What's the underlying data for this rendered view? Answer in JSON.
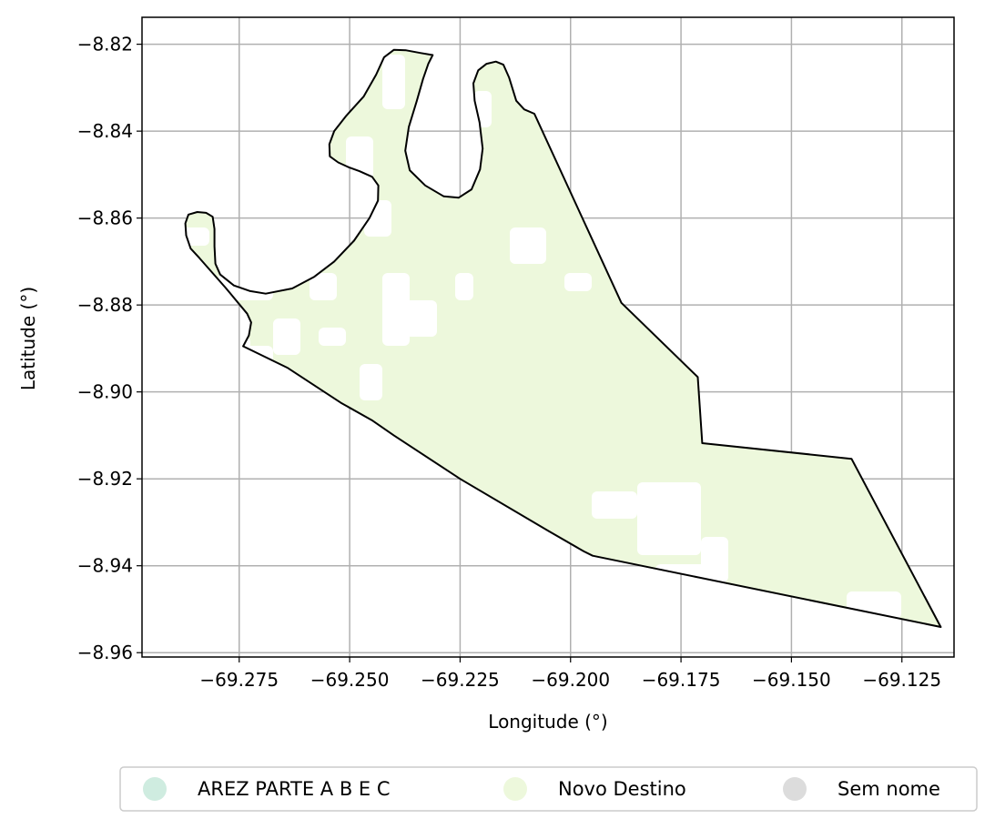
{
  "chart_data": {
    "type": "map",
    "xlabel": "Longitude (°)",
    "ylabel": "Latitude (°)",
    "xlim": [
      -69.297,
      -69.1132
    ],
    "ylim": [
      -8.961,
      -8.8138
    ],
    "grid": true,
    "xticks": [
      -69.275,
      -69.25,
      -69.225,
      -69.2,
      -69.175,
      -69.15,
      -69.125
    ],
    "xtick_labels": [
      "−69.275",
      "−69.250",
      "−69.225",
      "−69.200",
      "−69.175",
      "−69.150",
      "−69.125"
    ],
    "yticks": [
      -8.82,
      -8.84,
      -8.86,
      -8.88,
      -8.9,
      -8.92,
      -8.94,
      -8.96
    ],
    "ytick_labels": [
      "−8.82",
      "−8.84",
      "−8.86",
      "−8.88",
      "−8.90",
      "−8.92",
      "−8.94",
      "−8.96"
    ],
    "boundary": [
      [
        -69.2741,
        -8.8895
      ],
      [
        -69.2728,
        -8.887
      ],
      [
        -69.2723,
        -8.884
      ],
      [
        -69.2732,
        -8.882
      ],
      [
        -69.2781,
        -8.876
      ],
      [
        -69.284,
        -8.8692
      ],
      [
        -69.286,
        -8.867
      ],
      [
        -69.287,
        -8.864
      ],
      [
        -69.2872,
        -8.8612
      ],
      [
        -69.2865,
        -8.8592
      ],
      [
        -69.2845,
        -8.8586
      ],
      [
        -69.2825,
        -8.8588
      ],
      [
        -69.281,
        -8.8597
      ],
      [
        -69.2806,
        -8.8625
      ],
      [
        -69.2806,
        -8.8665
      ],
      [
        -69.2804,
        -8.8705
      ],
      [
        -69.2793,
        -8.873
      ],
      [
        -69.2762,
        -8.8755
      ],
      [
        -69.2725,
        -8.8768
      ],
      [
        -69.269,
        -8.8774
      ],
      [
        -69.263,
        -8.8762
      ],
      [
        -69.258,
        -8.8735
      ],
      [
        -69.2535,
        -8.87
      ],
      [
        -69.249,
        -8.8652
      ],
      [
        -69.2455,
        -8.86
      ],
      [
        -69.2436,
        -8.856
      ],
      [
        -69.2435,
        -8.8525
      ],
      [
        -69.2449,
        -8.8505
      ],
      [
        -69.2478,
        -8.8492
      ],
      [
        -69.2502,
        -8.8483
      ],
      [
        -69.2526,
        -8.8472
      ],
      [
        -69.2545,
        -8.8458
      ],
      [
        -69.2546,
        -8.843
      ],
      [
        -69.2535,
        -8.84
      ],
      [
        -69.2508,
        -8.8365
      ],
      [
        -69.2468,
        -8.832
      ],
      [
        -69.244,
        -8.827
      ],
      [
        -69.2422,
        -8.823
      ],
      [
        -69.24,
        -8.8213
      ],
      [
        -69.2372,
        -8.8214
      ],
      [
        -69.234,
        -8.822
      ],
      [
        -69.2312,
        -8.8225
      ],
      [
        -69.2322,
        -8.8245
      ],
      [
        -69.2334,
        -8.828
      ],
      [
        -69.2348,
        -8.833
      ],
      [
        -69.2366,
        -8.839
      ],
      [
        -69.2374,
        -8.8445
      ],
      [
        -69.2364,
        -8.849
      ],
      [
        -69.2329,
        -8.8525
      ],
      [
        -69.2287,
        -8.855
      ],
      [
        -69.2253,
        -8.8553
      ],
      [
        -69.2224,
        -8.8534
      ],
      [
        -69.2205,
        -8.8488
      ],
      [
        -69.2199,
        -8.844
      ],
      [
        -69.2206,
        -8.838
      ],
      [
        -69.2217,
        -8.833
      ],
      [
        -69.222,
        -8.829
      ],
      [
        -69.2209,
        -8.826
      ],
      [
        -69.219,
        -8.8245
      ],
      [
        -69.2169,
        -8.824
      ],
      [
        -69.2152,
        -8.8247
      ],
      [
        -69.2139,
        -8.8277
      ],
      [
        -69.2123,
        -8.833
      ],
      [
        -69.2105,
        -8.835
      ],
      [
        -69.2082,
        -8.836
      ],
      [
        -69.1885,
        -8.8795
      ],
      [
        -69.1712,
        -8.8966
      ],
      [
        -69.1702,
        -8.9118
      ],
      [
        -69.1364,
        -8.9154
      ],
      [
        -69.1162,
        -8.9541
      ],
      [
        -69.195,
        -8.9377
      ],
      [
        -69.197,
        -8.9367
      ],
      [
        -69.205,
        -8.932
      ],
      [
        -69.225,
        -8.92
      ],
      [
        -69.24,
        -8.91
      ],
      [
        -69.245,
        -8.9065
      ],
      [
        -69.252,
        -8.9025
      ],
      [
        -69.264,
        -8.8945
      ],
      [
        -69.2741,
        -8.8895
      ]
    ],
    "categories": [
      {
        "name": "AREZ PARTE A B E C",
        "color": "#cfece0"
      },
      {
        "name": "Novo Destino",
        "color": "#edf8dc"
      },
      {
        "name": "Sem nome",
        "color": "#dcdcdc"
      }
    ],
    "fill_color": "#edf8dc",
    "legend_position": "bottom-center"
  }
}
